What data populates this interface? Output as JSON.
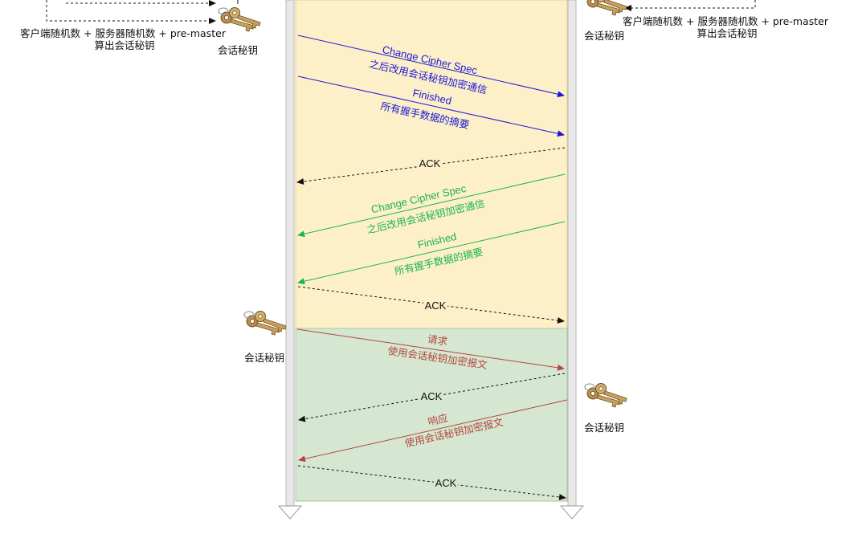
{
  "colors": {
    "blue": "#1a1ad6",
    "green": "#19b84a",
    "red": "#b5463c",
    "black": "#111111",
    "phase_yellow_fill": "#fdefc8",
    "phase_green_fill": "#d5e7d1",
    "lifeline": "#d8d8d8"
  },
  "left_side": {
    "derive_line1": "客户端随机数 + 服务器随机数 +  pre-master",
    "derive_line2": "算出会话秘钥",
    "key_label_top": "会话秘钥",
    "key_label_mid": "会话秘钥"
  },
  "right_side": {
    "derive_line1": "客户端随机数 + 服务器随机数 +  pre-master",
    "derive_line2": "算出会话秘钥",
    "key_label_top": "会话秘钥",
    "key_label_bottom": "会话秘钥"
  },
  "messages": {
    "client_ccs_title": "Change Cipher Spec",
    "client_ccs_desc": "之后改用会话秘钥加密通信",
    "client_fin_title": "Finished",
    "client_fin_desc": "所有握手数据的摘要",
    "ack1": "ACK",
    "server_ccs_title": "Change Cipher Spec",
    "server_ccs_desc": "之后改用会话秘钥加密通信",
    "server_fin_title": "Finished",
    "server_fin_desc": "所有握手数据的摘要",
    "ack2": "ACK",
    "request_title": "请求",
    "request_desc": "使用会话秘钥加密报文",
    "ack3": "ACK",
    "response_title": "响应",
    "response_desc": "使用会话秘钥加密报文",
    "ack4": "ACK"
  }
}
